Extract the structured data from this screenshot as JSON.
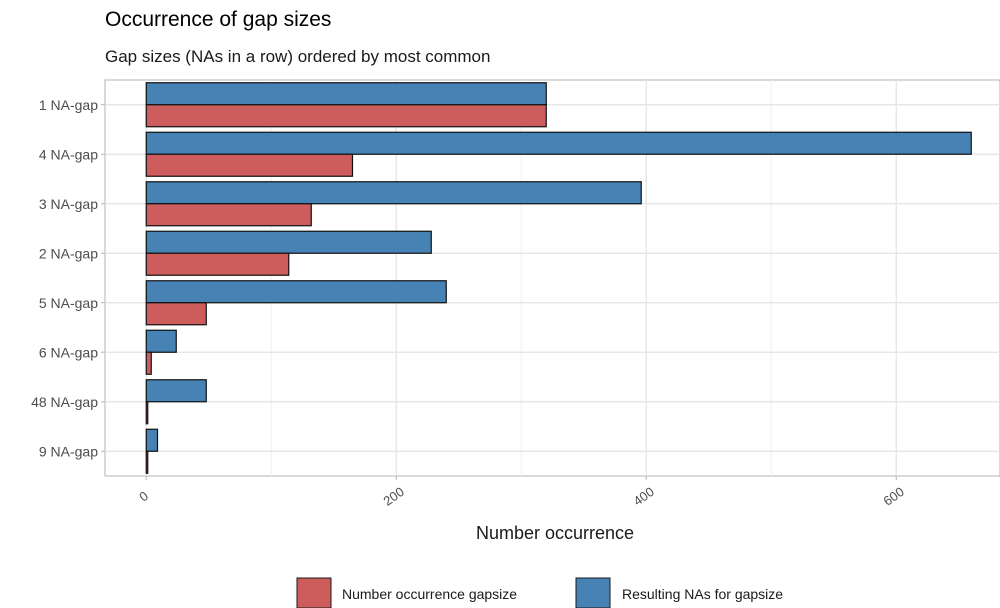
{
  "chart_data": {
    "type": "bar",
    "orientation": "horizontal",
    "title": "Occurrence of gap sizes",
    "subtitle": "Gap sizes (NAs in a row) ordered by most common",
    "xlabel": "Number occurrence",
    "ylabel": "",
    "categories": [
      "1 NA-gap",
      "4 NA-gap",
      "3 NA-gap",
      "2 NA-gap",
      "5 NA-gap",
      "6 NA-gap",
      "48 NA-gap",
      "9 NA-gap"
    ],
    "series": [
      {
        "name": "Number occurrence gapsize",
        "color": "#CD5C5C",
        "values": [
          320,
          165,
          132,
          114,
          48,
          4,
          1,
          1
        ]
      },
      {
        "name": "Resulting NAs for gapsize",
        "color": "#4682B4",
        "values": [
          320,
          660,
          396,
          228,
          240,
          24,
          48,
          9
        ]
      }
    ],
    "xlim": [
      -33,
      683
    ],
    "xticks": [
      0,
      200,
      400,
      600
    ],
    "xtick_labels": [
      "0",
      "200",
      "400",
      "600"
    ],
    "grid": true,
    "legend_position": "bottom"
  }
}
